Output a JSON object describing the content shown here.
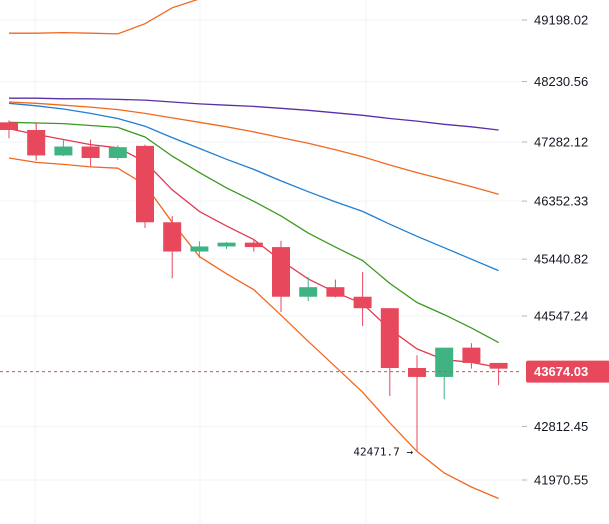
{
  "chart_data": {
    "type": "candlestick",
    "y_axis_position": "right",
    "ylim": [
      41700,
      49600
    ],
    "y_ticks": [
      "49198.02",
      "48230.56",
      "47282.12",
      "46352.33",
      "45440.82",
      "44547.24",
      "42812.45",
      "41970.55"
    ],
    "current_price": "43674.03",
    "low_annotation": "42471.7 →",
    "colors": {
      "up": "#3fb382",
      "down": "#e8485c",
      "price_line": "#e8485c",
      "band": "#f2681f",
      "ma_short": "#e23b4f",
      "ma_mid": "#3a9a1e",
      "ma_long": "#1e7fd4",
      "ma_longest": "#5b2ea6"
    },
    "candles": [
      {
        "o": 47590,
        "h": 47620,
        "l": 47340,
        "c": 47470
      },
      {
        "o": 47470,
        "h": 47590,
        "l": 46990,
        "c": 47070
      },
      {
        "o": 47070,
        "h": 47310,
        "l": 47060,
        "c": 47210
      },
      {
        "o": 47210,
        "h": 47320,
        "l": 46900,
        "c": 47030
      },
      {
        "o": 47030,
        "h": 47230,
        "l": 47000,
        "c": 47200
      },
      {
        "o": 47220,
        "h": 47240,
        "l": 45930,
        "c": 46020
      },
      {
        "o": 46020,
        "h": 46120,
        "l": 45140,
        "c": 45560
      },
      {
        "o": 45560,
        "h": 45720,
        "l": 45460,
        "c": 45640
      },
      {
        "o": 45640,
        "h": 45710,
        "l": 45600,
        "c": 45700
      },
      {
        "o": 45700,
        "h": 45740,
        "l": 45560,
        "c": 45630
      },
      {
        "o": 45630,
        "h": 45730,
        "l": 44610,
        "c": 44850
      },
      {
        "o": 44850,
        "h": 45160,
        "l": 44780,
        "c": 45000
      },
      {
        "o": 45000,
        "h": 45120,
        "l": 44840,
        "c": 44850
      },
      {
        "o": 44850,
        "h": 45240,
        "l": 44390,
        "c": 44670
      },
      {
        "o": 44670,
        "h": 44670,
        "l": 43290,
        "c": 43730
      },
      {
        "o": 43730,
        "h": 43930,
        "l": 42420,
        "c": 43590
      },
      {
        "o": 43590,
        "h": 44050,
        "l": 43240,
        "c": 44050
      },
      {
        "o": 44050,
        "h": 44120,
        "l": 43720,
        "c": 43810
      },
      {
        "o": 43810,
        "h": 43800,
        "l": 43460,
        "c": 43720
      }
    ],
    "series": [
      {
        "color": "#f2681f",
        "values": [
          48990,
          48990,
          49000,
          48990,
          48980,
          49140,
          49390,
          49530,
          49700,
          49850,
          null,
          null,
          null,
          null,
          null,
          null,
          null,
          null,
          null
        ]
      },
      {
        "color": "#5b2ea6",
        "values": [
          47970,
          47970,
          47960,
          47960,
          47950,
          47940,
          47910,
          47880,
          47860,
          47840,
          47810,
          47780,
          47740,
          47700,
          47650,
          47610,
          47560,
          47520,
          47470
        ]
      },
      {
        "color": "#f2681f",
        "values": [
          47910,
          47890,
          47860,
          47830,
          47790,
          47730,
          47660,
          47590,
          47520,
          47440,
          47350,
          47260,
          47160,
          47050,
          46920,
          46800,
          46690,
          46580,
          46460
        ]
      },
      {
        "color": "#1e7fd4",
        "values": [
          47890,
          47850,
          47800,
          47730,
          47650,
          47530,
          47350,
          47180,
          47010,
          46850,
          46670,
          46500,
          46340,
          46190,
          45990,
          45800,
          45620,
          45440,
          45260
        ]
      },
      {
        "color": "#3a9a1e",
        "values": [
          47590,
          47580,
          47570,
          47540,
          47510,
          47360,
          47060,
          46800,
          46560,
          46350,
          46120,
          45850,
          45630,
          45420,
          45060,
          44760,
          44570,
          44360,
          44130
        ]
      },
      {
        "color": "#e23b4f",
        "values": [
          47490,
          47400,
          47320,
          47240,
          47190,
          46970,
          46530,
          46190,
          45960,
          45750,
          45420,
          45130,
          44920,
          44740,
          44340,
          44030,
          43860,
          43820,
          43740
        ]
      },
      {
        "color": "#f2681f",
        "values": [
          47030,
          46960,
          46930,
          46890,
          46870,
          46610,
          46020,
          45480,
          45210,
          44960,
          44560,
          44150,
          43750,
          43350,
          42870,
          42420,
          42080,
          41860,
          41680
        ]
      }
    ]
  }
}
